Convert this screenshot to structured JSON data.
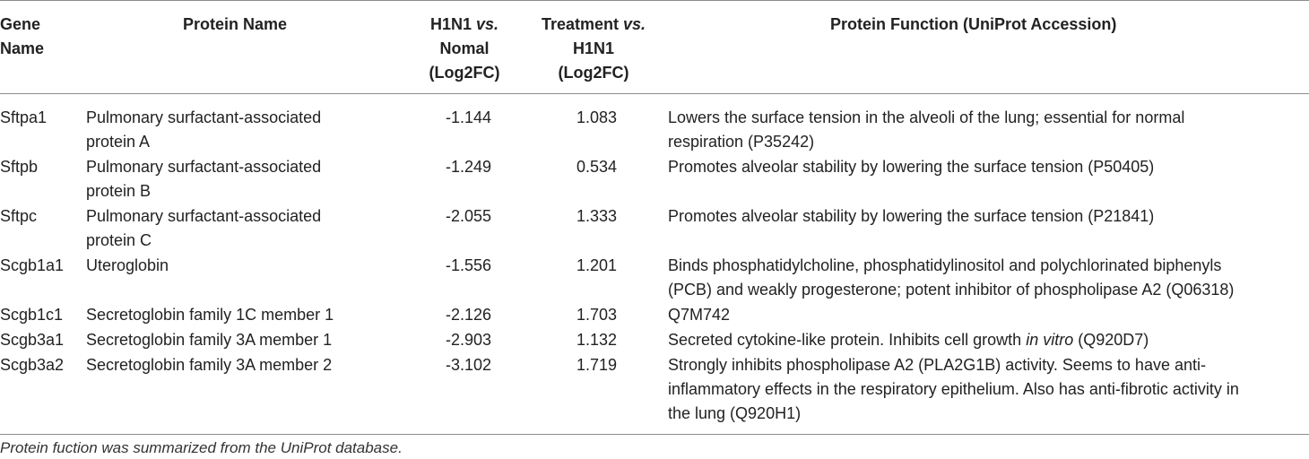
{
  "header": {
    "gene": [
      "Gene",
      "Name"
    ],
    "protein": "Protein Name",
    "h1n1": [
      "H1N1 vs.",
      "Nomal",
      "(Log2FC)"
    ],
    "treat": [
      "Treatment vs.",
      "H1N1",
      "(Log2FC)"
    ],
    "function": "Protein Function (UniProt Accession)"
  },
  "rows": [
    {
      "gene": "Sftpa1",
      "protein": [
        "Pulmonary surfactant-associated",
        "protein A"
      ],
      "h1n1": "-1.144",
      "treat": "1.083",
      "function": [
        "Lowers the surface tension in the alveoli of the lung; essential for normal",
        "respiration (P35242)"
      ]
    },
    {
      "gene": "Sftpb",
      "protein": [
        "Pulmonary surfactant-associated",
        "protein B"
      ],
      "h1n1": "-1.249",
      "treat": "0.534",
      "function": [
        "Promotes alveolar stability by lowering the surface tension (P50405)"
      ]
    },
    {
      "gene": "Sftpc",
      "protein": [
        "Pulmonary surfactant-associated",
        "protein C"
      ],
      "h1n1": "-2.055",
      "treat": "1.333",
      "function": [
        "Promotes alveolar stability by lowering the surface tension (P21841)"
      ]
    },
    {
      "gene": "Scgb1a1",
      "protein": [
        "Uteroglobin"
      ],
      "h1n1": "-1.556",
      "treat": "1.201",
      "function": [
        "Binds phosphatidylcholine, phosphatidylinositol and polychlorinated biphenyls",
        "(PCB) and weakly progesterone; potent inhibitor of phospholipase A2 (Q06318)"
      ]
    },
    {
      "gene": "Scgb1c1",
      "protein": [
        "Secretoglobin family 1C member 1"
      ],
      "h1n1": "-2.126",
      "treat": "1.703",
      "function": [
        "Q7M742"
      ]
    },
    {
      "gene": "Scgb3a1",
      "protein": [
        "Secretoglobin family 3A member 1"
      ],
      "h1n1": "-2.903",
      "treat": "1.132",
      "function_parts": {
        "before": "Secreted cytokine-like protein. Inhibits cell growth ",
        "italic": "in vitro",
        "after": " (Q920D7)"
      }
    },
    {
      "gene": "Scgb3a2",
      "protein": [
        "Secretoglobin family 3A member 2"
      ],
      "h1n1": "-3.102",
      "treat": "1.719",
      "function": [
        "Strongly inhibits phospholipase A2 (PLA2G1B) activity. Seems to have anti-",
        "inflammatory effects in the respiratory epithelium. Also has anti-fibrotic activity in",
        "the lung (Q920H1)"
      ]
    }
  ],
  "footnote": "Protein fuction was summarized from the UniProt database."
}
